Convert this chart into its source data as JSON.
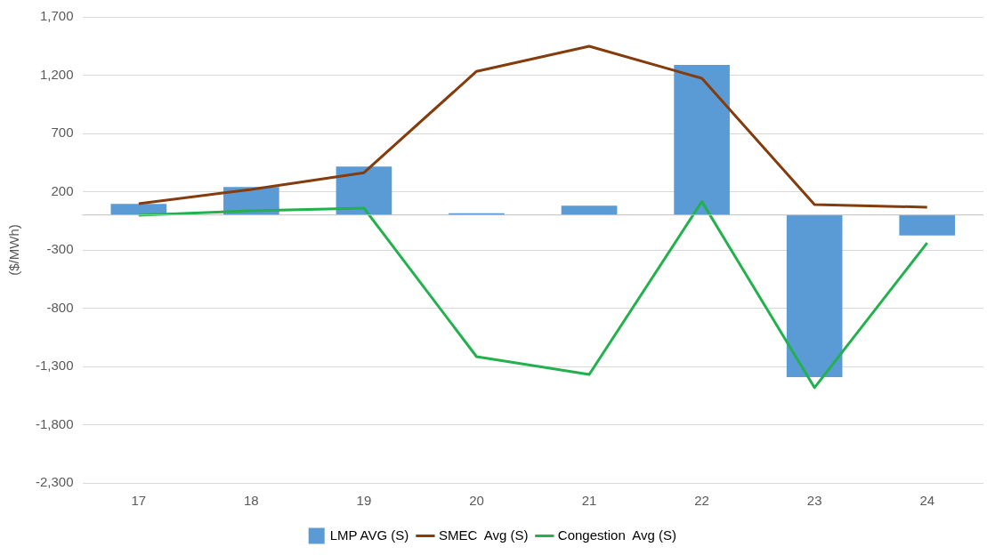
{
  "chart_data": {
    "type": "bar",
    "ylabel": "($/MWh)",
    "categories": [
      "17",
      "18",
      "19",
      "20",
      "21",
      "22",
      "23",
      "24"
    ],
    "series": [
      {
        "name": "LMP AVG (S)",
        "color": "#5b9bd5",
        "values": [
          95,
          240,
          416,
          15,
          80,
          1288,
          -1392,
          -175
        ]
      },
      {
        "name": "SMEC  Avg (S)",
        "type": "line",
        "color": "#843c0c",
        "values": [
          97,
          219,
          363,
          1233,
          1448,
          1173,
          89,
          67
        ]
      },
      {
        "name": "Congestion  Avg (S)",
        "type": "line",
        "color": "#22b14c",
        "values": [
          -2,
          36,
          59,
          -1216,
          -1369,
          115,
          -1482,
          -240
        ]
      }
    ],
    "ylim": [
      -2300,
      1700
    ],
    "yticks": [
      {
        "value": -2300,
        "label": "-2,300"
      },
      {
        "value": -1800,
        "label": "-1,800"
      },
      {
        "value": -1300,
        "label": "-1,300"
      },
      -800,
      -300,
      200,
      700,
      {
        "value": 1200,
        "label": "1,200"
      },
      {
        "value": 1700,
        "label": "1,700"
      }
    ],
    "grid": "y",
    "legend": "bottom",
    "marker": "none",
    "line_style": "solid"
  }
}
